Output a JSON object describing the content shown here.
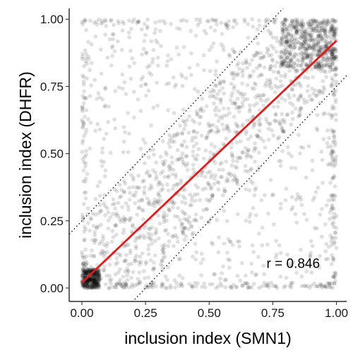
{
  "chart_data": {
    "type": "scatter",
    "title": "",
    "xlabel": "inclusion index (SMN1)",
    "ylabel": "inclusion index (DHFR)",
    "xlim": [
      -0.05,
      1.04
    ],
    "ylim": [
      -0.05,
      1.04
    ],
    "x_ticks": [
      0.0,
      0.25,
      0.5,
      0.75,
      1.0
    ],
    "x_tick_labels": [
      "0.00",
      "0.25",
      "0.50",
      "0.75",
      "1.00"
    ],
    "y_ticks": [
      0.0,
      0.25,
      0.5,
      0.75,
      1.0
    ],
    "y_tick_labels": [
      "0.00",
      "0.25",
      "0.50",
      "0.75",
      "1.00"
    ],
    "grid": false,
    "point_color": "#000000",
    "point_opacity": 0.12,
    "fit_line": {
      "color": "#e41a1c",
      "x": [
        0.0,
        1.0
      ],
      "y": [
        0.02,
        0.92
      ]
    },
    "reference_lines": [
      {
        "style": "dotted",
        "color": "#000000",
        "intercept": 0.25,
        "slope": 1
      },
      {
        "style": "dotted",
        "color": "#000000",
        "intercept": -0.25,
        "slope": 1
      }
    ],
    "annotation": {
      "text": "r =  0.846",
      "x": 0.83,
      "y": 0.09
    },
    "clusters": [
      {
        "x": [
          0.0,
          0.07
        ],
        "y": [
          0.0,
          0.07
        ],
        "n": 320
      },
      {
        "x": [
          0.78,
          1.0
        ],
        "y": [
          0.82,
          1.0
        ],
        "n": 420
      },
      {
        "x": [
          0.0,
          1.0
        ],
        "y": [
          0.0,
          0.02
        ],
        "n": 120
      },
      {
        "x": [
          0.98,
          1.0
        ],
        "y": [
          0.0,
          1.0
        ],
        "n": 110
      },
      {
        "x": [
          0.0,
          0.02
        ],
        "y": [
          0.0,
          1.0
        ],
        "n": 70
      },
      {
        "x": [
          0.0,
          1.0
        ],
        "y": [
          0.98,
          1.0
        ],
        "n": 70
      },
      {
        "x": [
          0.0,
          1.0
        ],
        "y": [
          0.0,
          1.0
        ],
        "n": 700
      },
      {
        "x": [
          0.0,
          1.0
        ],
        "y": [
          0.0,
          1.0
        ],
        "n": 900
      }
    ]
  }
}
